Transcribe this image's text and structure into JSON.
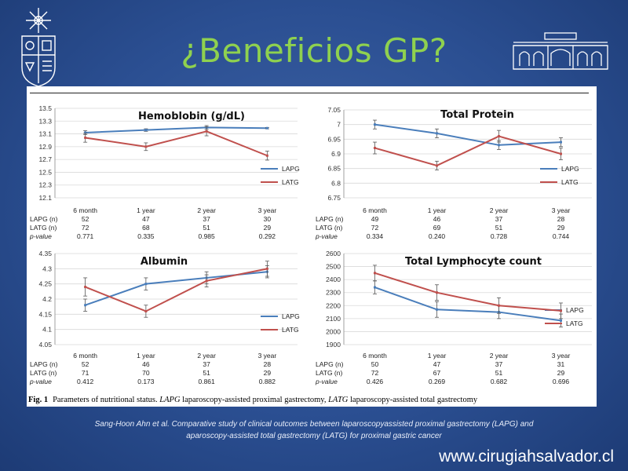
{
  "slide": {
    "title": "¿Beneficios GP?",
    "citation_line1": "Sang-Hoon Ahn et al. Comparative study of clinical outcomes between laparoscopyassisted proximal gastrectomy (LAPG) and",
    "citation_line2": "aparoscopy-assisted total gastrectomy (LATG) for proximal gastric cancer",
    "website": "www.cirugiahsalvador.cl"
  },
  "figure": {
    "caption_label": "Fig. 1",
    "caption_text_1": "Parameters of nutritional status.",
    "caption_abbr_1": "LAPG",
    "caption_text_2": "laparoscopy-assisted proximal gastrectomy,",
    "caption_abbr_2": "LATG",
    "caption_text_3": "laparoscopy-assisted total gastrectomy"
  },
  "colors": {
    "LAPG": "#4a7ebb",
    "LATG": "#c0504d"
  },
  "chart_data": [
    {
      "type": "line",
      "title": "Hemoblobin (g/dL)",
      "categories": [
        "6 month",
        "1 year",
        "2 year",
        "3 year"
      ],
      "ylim": [
        12.1,
        13.5
      ],
      "yticks": [
        "13.5",
        "13.3",
        "13.1",
        "12.9",
        "12.7",
        "12.5",
        "12.3",
        "12.1"
      ],
      "series": [
        {
          "name": "LAPG",
          "values": [
            13.12,
            13.16,
            13.2,
            13.19
          ],
          "err": [
            0.03,
            0.02,
            0.03,
            0.01
          ]
        },
        {
          "name": "LATG",
          "values": [
            13.04,
            12.9,
            13.14,
            12.76
          ],
          "err": [
            0.07,
            0.06,
            0.07,
            0.07
          ]
        }
      ],
      "table": {
        "rows": [
          {
            "label": "LAPG (n)",
            "values": [
              "52",
              "47",
              "37",
              "30"
            ]
          },
          {
            "label": "LATG (n)",
            "values": [
              "72",
              "68",
              "51",
              "29"
            ]
          },
          {
            "label": "p-value",
            "values": [
              "0.771",
              "0.335",
              "0.985",
              "0.292"
            ]
          }
        ]
      }
    },
    {
      "type": "line",
      "title": "Total Protein",
      "categories": [
        "6 month",
        "1 year",
        "2 year",
        "3 year"
      ],
      "ylim": [
        6.75,
        7.05
      ],
      "yticks": [
        "7.05",
        "7",
        "6.95",
        "6.9",
        "6.85",
        "6.8",
        "6.75"
      ],
      "series": [
        {
          "name": "LAPG",
          "values": [
            7.0,
            6.97,
            6.93,
            6.94
          ],
          "err": [
            0.015,
            0.015,
            0.015,
            0.015
          ]
        },
        {
          "name": "LATG",
          "values": [
            6.92,
            6.86,
            6.96,
            6.9
          ],
          "err": [
            0.02,
            0.015,
            0.02,
            0.02
          ]
        }
      ],
      "table": {
        "rows": [
          {
            "label": "LAPG (n)",
            "values": [
              "49",
              "46",
              "37",
              "28"
            ]
          },
          {
            "label": "LATG (n)",
            "values": [
              "72",
              "69",
              "51",
              "29"
            ]
          },
          {
            "label": "p-value",
            "values": [
              "0.334",
              "0.240",
              "0.728",
              "0.744"
            ]
          }
        ]
      }
    },
    {
      "type": "line",
      "title": "Albumin",
      "categories": [
        "6 month",
        "1 year",
        "2 year",
        "3 year"
      ],
      "ylim": [
        4.05,
        4.35
      ],
      "yticks": [
        "4.35",
        "4.3",
        "4.25",
        "4.2",
        "4.15",
        "4.1",
        "4.05"
      ],
      "series": [
        {
          "name": "LAPG",
          "values": [
            4.18,
            4.25,
            4.27,
            4.29
          ],
          "err": [
            0.02,
            0.02,
            0.02,
            0.02
          ]
        },
        {
          "name": "LATG",
          "values": [
            4.24,
            4.16,
            4.26,
            4.3
          ],
          "err": [
            0.03,
            0.02,
            0.02,
            0.025
          ]
        }
      ],
      "table": {
        "rows": [
          {
            "label": "LAPG (n)",
            "values": [
              "52",
              "46",
              "37",
              "28"
            ]
          },
          {
            "label": "LATG (n)",
            "values": [
              "71",
              "70",
              "51",
              "29"
            ]
          },
          {
            "label": "p-value",
            "values": [
              "0.412",
              "0.173",
              "0.861",
              "0.882"
            ]
          }
        ]
      }
    },
    {
      "type": "line",
      "title": "Total Lymphocyte count",
      "categories": [
        "6 month",
        "1 year",
        "2 year",
        "3 year"
      ],
      "ylim": [
        1900,
        2600
      ],
      "yticks": [
        "2600",
        "2500",
        "2400",
        "2300",
        "2200",
        "2100",
        "2000",
        "1900"
      ],
      "series": [
        {
          "name": "LAPG",
          "values": [
            2340,
            2170,
            2150,
            2085
          ],
          "err": [
            50,
            60,
            50,
            50
          ]
        },
        {
          "name": "LATG",
          "values": [
            2450,
            2300,
            2200,
            2160
          ],
          "err": [
            60,
            60,
            60,
            60
          ]
        }
      ],
      "table": {
        "rows": [
          {
            "label": "LAPG (n)",
            "values": [
              "50",
              "47",
              "37",
              "31"
            ]
          },
          {
            "label": "LATG (n)",
            "values": [
              "72",
              "67",
              "51",
              "29"
            ]
          },
          {
            "label": "p-value",
            "values": [
              "0.426",
              "0.269",
              "0.682",
              "0.696"
            ]
          }
        ]
      }
    }
  ]
}
